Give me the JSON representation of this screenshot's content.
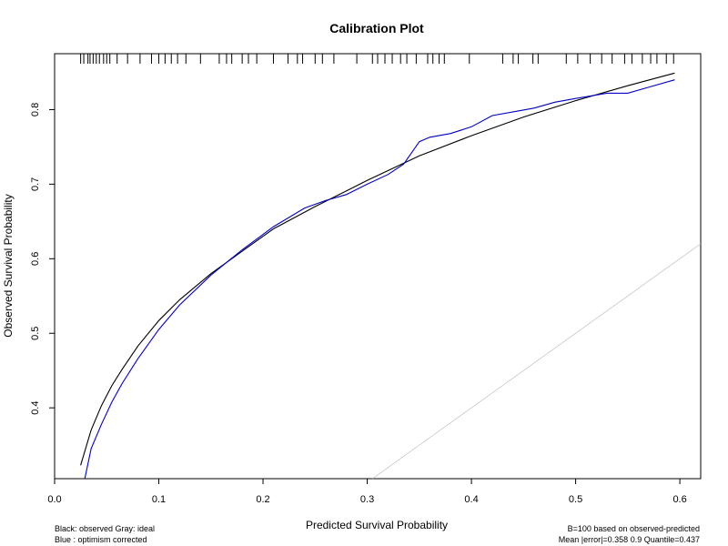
{
  "chart_data": {
    "type": "line",
    "title": "Calibration Plot",
    "xlabel": "Predicted Survival Probability",
    "ylabel": "Observed Survival Probability",
    "xlim": [
      0.0,
      0.62
    ],
    "ylim": [
      0.305,
      0.875
    ],
    "x_ticks": [
      0.0,
      0.1,
      0.2,
      0.3,
      0.4,
      0.5,
      0.6
    ],
    "y_ticks": [
      0.4,
      0.5,
      0.6,
      0.7,
      0.8
    ],
    "x_tick_labels": [
      "0.0",
      "0.1",
      "0.2",
      "0.3",
      "0.4",
      "0.5",
      "0.6"
    ],
    "y_tick_labels": [
      "0.4",
      "0.5",
      "0.6",
      "0.7",
      "0.8"
    ],
    "series": [
      {
        "color": "#000000",
        "x": [
          0.025,
          0.035,
          0.045,
          0.055,
          0.065,
          0.08,
          0.1,
          0.12,
          0.15,
          0.18,
          0.21,
          0.25,
          0.3,
          0.35,
          0.4,
          0.45,
          0.5,
          0.55,
          0.595
        ],
        "y": [
          0.323,
          0.37,
          0.403,
          0.43,
          0.452,
          0.483,
          0.517,
          0.545,
          0.58,
          0.61,
          0.64,
          0.67,
          0.705,
          0.738,
          0.765,
          0.79,
          0.812,
          0.832,
          0.849
        ]
      },
      {
        "color": "#0000cc",
        "x": [
          0.029,
          0.035,
          0.045,
          0.055,
          0.065,
          0.08,
          0.1,
          0.12,
          0.15,
          0.18,
          0.21,
          0.24,
          0.26,
          0.28,
          0.3,
          0.32,
          0.335,
          0.35,
          0.36,
          0.38,
          0.4,
          0.42,
          0.44,
          0.46,
          0.48,
          0.5,
          0.53,
          0.55,
          0.57,
          0.595
        ],
        "y": [
          0.305,
          0.345,
          0.378,
          0.408,
          0.433,
          0.466,
          0.505,
          0.538,
          0.578,
          0.612,
          0.643,
          0.668,
          0.678,
          0.686,
          0.7,
          0.713,
          0.727,
          0.757,
          0.763,
          0.768,
          0.777,
          0.792,
          0.797,
          0.802,
          0.81,
          0.815,
          0.822,
          0.822,
          0.83,
          0.84
        ]
      },
      {
        "color": "#c8c8c8",
        "x": [
          0.305,
          0.62
        ],
        "y": [
          0.305,
          0.62
        ]
      }
    ],
    "rug_x": [
      0.025,
      0.028,
      0.032,
      0.034,
      0.037,
      0.04,
      0.043,
      0.047,
      0.05,
      0.053,
      0.06,
      0.07,
      0.082,
      0.093,
      0.1,
      0.106,
      0.112,
      0.118,
      0.126,
      0.14,
      0.158,
      0.165,
      0.17,
      0.18,
      0.186,
      0.194,
      0.21,
      0.224,
      0.233,
      0.238,
      0.25,
      0.257,
      0.268,
      0.29,
      0.305,
      0.31,
      0.317,
      0.324,
      0.332,
      0.338,
      0.347,
      0.358,
      0.363,
      0.369,
      0.374,
      0.398,
      0.43,
      0.44,
      0.445,
      0.459,
      0.464,
      0.491,
      0.502,
      0.514,
      0.525,
      0.535,
      0.547,
      0.554,
      0.564,
      0.572,
      0.578,
      0.587,
      0.594
    ],
    "footnotes": {
      "left_line1": "Black: observed  Gray: ideal",
      "left_line2": "Blue : optimism corrected",
      "right_line1": "B=100 based on observed-predicted",
      "right_line2": "Mean |error|=0.358  0.9 Quantile=0.437"
    }
  }
}
